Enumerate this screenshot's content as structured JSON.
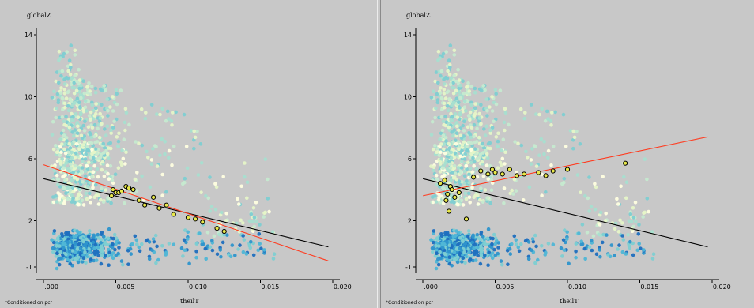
{
  "colors": {
    "background": "#c8c8c8",
    "overall_fit": "#000000",
    "conditioned_fit": "#ff3b1f",
    "highlight_fill": "#e8e84a",
    "highlight_stroke": "#000000",
    "palette": [
      "#ffffe0",
      "#e6f5c8",
      "#c6ead0",
      "#a8dfd0",
      "#7ecfd2",
      "#4fb6d6",
      "#2e95cc",
      "#1f6fbf"
    ]
  },
  "chart_data": [
    {
      "type": "scatter",
      "xlabel": "theilT",
      "ylabel": "globalZ",
      "footnote": "*Conditioned on pcr",
      "xlim": [
        -0.0005,
        0.0205
      ],
      "ylim": [
        -1.4,
        14.4
      ],
      "xticks": [
        0.0,
        0.005,
        0.01,
        0.015,
        0.02
      ],
      "xtick_labels": [
        ".000",
        "0.005",
        "0.010",
        "0.015",
        "0.020"
      ],
      "yticks": [
        -1,
        2,
        6,
        10,
        14
      ],
      "ytick_labels": [
        "-1",
        "2",
        "6",
        "10",
        "14"
      ],
      "grid": false,
      "overall_fit": {
        "x": [
          0.0,
          0.0197
        ],
        "y": [
          4.7,
          0.3
        ]
      },
      "conditioned_fit": {
        "x": [
          0.0,
          0.0197
        ],
        "y": [
          5.6,
          -0.6
        ]
      },
      "highlighted_points": {
        "x": [
          0.0047,
          0.0048,
          0.005,
          0.0052,
          0.0054,
          0.0057,
          0.0059,
          0.0062,
          0.0066,
          0.007,
          0.0076,
          0.008,
          0.0085,
          0.009,
          0.01,
          0.0105,
          0.011,
          0.012,
          0.0125
        ],
        "y": [
          3.6,
          4.0,
          3.8,
          3.8,
          3.9,
          4.2,
          4.1,
          4.0,
          3.3,
          3.0,
          3.5,
          2.8,
          3.0,
          2.4,
          2.2,
          2.1,
          1.9,
          1.5,
          1.3
        ]
      }
    },
    {
      "type": "scatter",
      "xlabel": "theilT",
      "ylabel": "globalZ",
      "footnote": "*Conditioned on pcr",
      "xlim": [
        -0.0005,
        0.0205
      ],
      "ylim": [
        -1.4,
        14.4
      ],
      "xticks": [
        0.0,
        0.005,
        0.01,
        0.015,
        0.02
      ],
      "xtick_labels": [
        ".000",
        "0.005",
        "0.010",
        "0.015",
        "0.020"
      ],
      "yticks": [
        -1,
        2,
        6,
        10,
        14
      ],
      "ytick_labels": [
        "-1",
        "2",
        "6",
        "10",
        "14"
      ],
      "grid": false,
      "overall_fit": {
        "x": [
          0.0,
          0.0197
        ],
        "y": [
          4.7,
          0.3
        ]
      },
      "conditioned_fit": {
        "x": [
          0.0,
          0.0197
        ],
        "y": [
          3.6,
          7.4
        ]
      },
      "highlighted_points": {
        "x": [
          0.0012,
          0.0015,
          0.0016,
          0.0017,
          0.0018,
          0.0019,
          0.002,
          0.0022,
          0.0025,
          0.003,
          0.0035,
          0.004,
          0.0045,
          0.0048,
          0.005,
          0.0055,
          0.006,
          0.0065,
          0.007,
          0.008,
          0.0085,
          0.009,
          0.01,
          0.014
        ],
        "y": [
          4.4,
          4.6,
          3.3,
          3.7,
          2.6,
          4.2,
          4.0,
          3.5,
          3.8,
          2.1,
          4.8,
          5.2,
          5.0,
          5.3,
          5.1,
          5.0,
          5.3,
          4.9,
          5.0,
          5.1,
          4.9,
          5.2,
          5.3,
          5.7
        ]
      }
    }
  ]
}
